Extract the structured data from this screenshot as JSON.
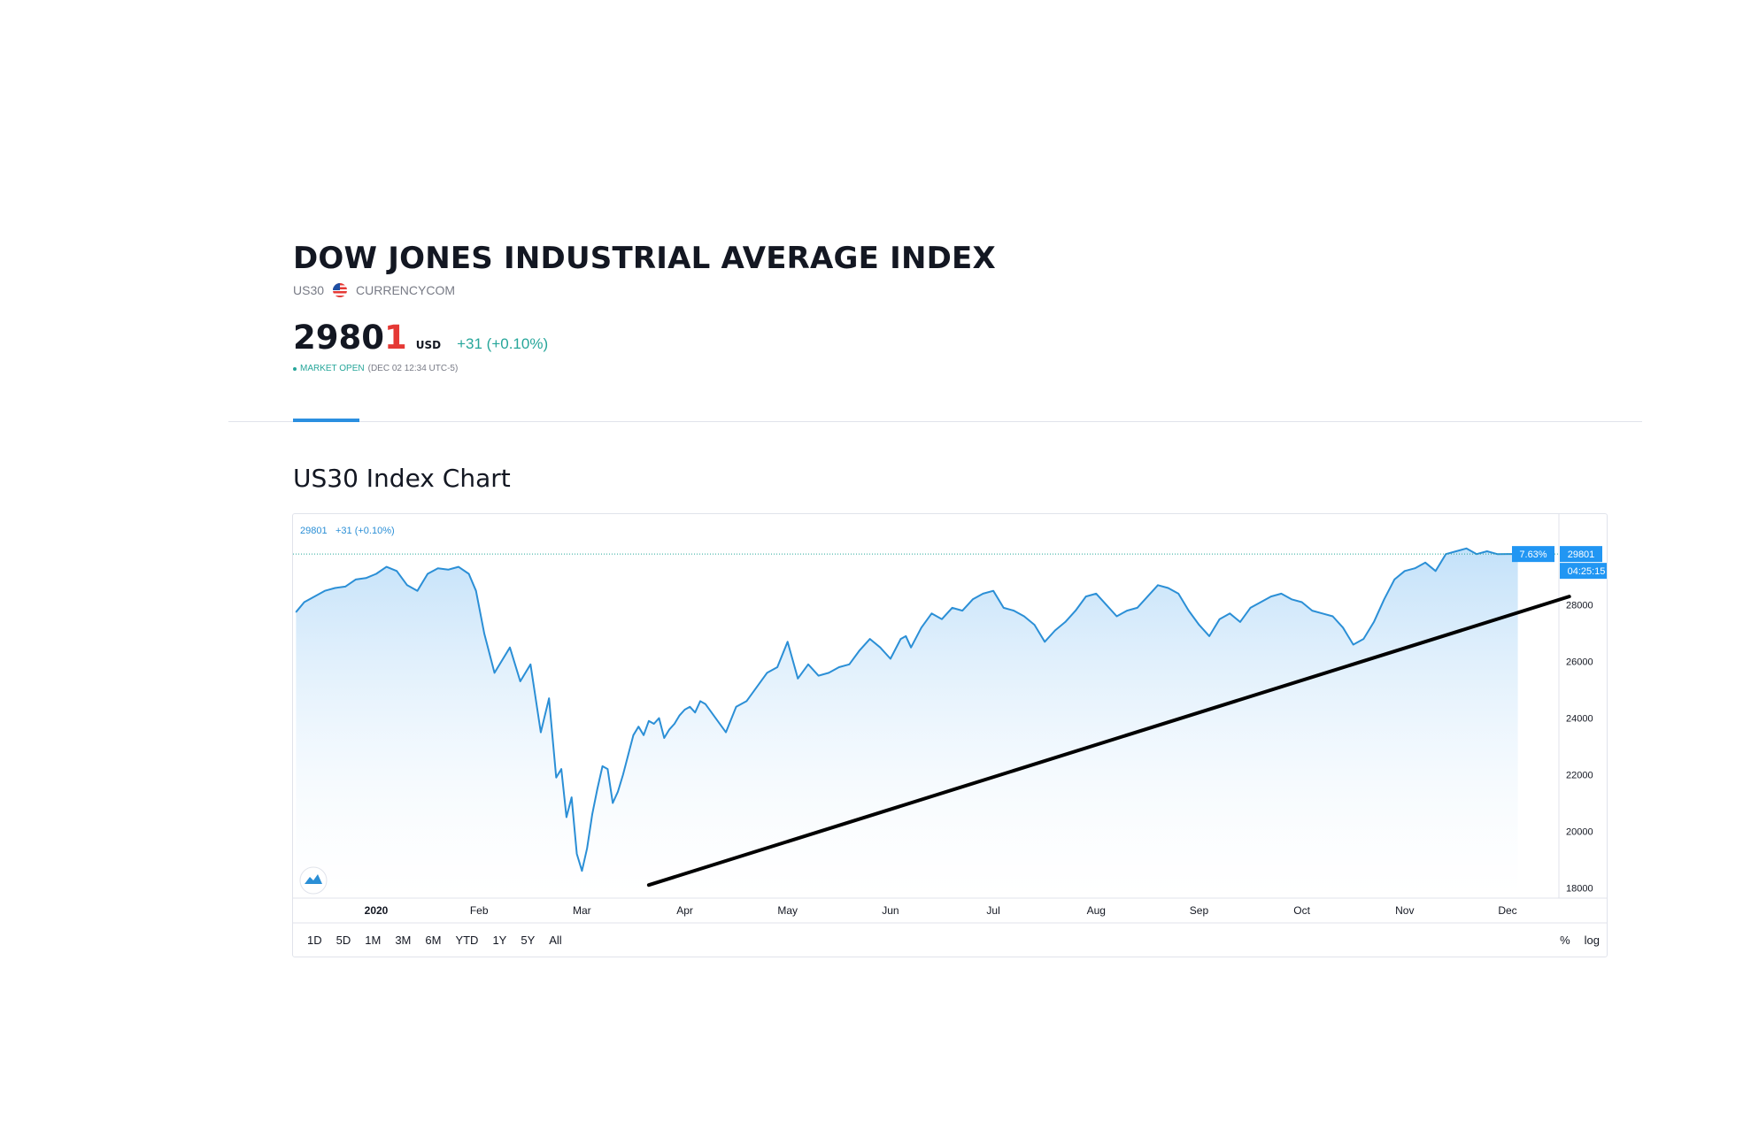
{
  "header": {
    "title": "DOW JONES INDUSTRIAL AVERAGE INDEX",
    "symbol": "US30",
    "exchange": "CURRENCYCOM",
    "price_main": "2980",
    "price_last_digit": "1",
    "currency": "USD",
    "change": "+31 (+0.10%)",
    "market_status": "MARKET OPEN",
    "market_time": "(DEC 02 12:34 UTC-5)"
  },
  "section": {
    "title": "US30 Index Chart"
  },
  "chart_overlay": {
    "legend_price": "29801",
    "legend_change": "+31 (+0.10%)",
    "percent_badge": "7.63%",
    "price_badge": "29801",
    "countdown_badge": "04:25:15"
  },
  "range_buttons": [
    "1D",
    "5D",
    "1M",
    "3M",
    "6M",
    "YTD",
    "1Y",
    "5Y",
    "All"
  ],
  "scale_buttons": [
    "%",
    "log"
  ],
  "colors": {
    "line": "#2b8fd6",
    "fill": "#d4e9fb",
    "badge": "#2196f3",
    "trendline": "#000000",
    "price_up": "#26a69a",
    "price_last": "#e53935"
  },
  "chart_data": {
    "type": "area",
    "title": "",
    "xlabel": "",
    "ylabel": "",
    "ylim": [
      17700,
      30900
    ],
    "y_ticks": [
      18000,
      20000,
      22000,
      24000,
      26000,
      28000
    ],
    "x_tick_labels": [
      "2020",
      "Feb",
      "Mar",
      "Apr",
      "May",
      "Jun",
      "Jul",
      "Aug",
      "Sep",
      "Oct",
      "Nov",
      "Dec"
    ],
    "x_tick_month_index": [
      0,
      1,
      2,
      3,
      4,
      5,
      6,
      7,
      8,
      9,
      10,
      11
    ],
    "x_range_months": [
      -0.82,
      12.67
    ],
    "series": [
      {
        "x": [
          -0.78,
          -0.7,
          -0.6,
          -0.5,
          -0.4,
          -0.3,
          -0.2,
          -0.1,
          0.0,
          0.1,
          0.2,
          0.3,
          0.4,
          0.5,
          0.6,
          0.7,
          0.8,
          0.9,
          0.97,
          1.05,
          1.15,
          1.3,
          1.4,
          1.5,
          1.6,
          1.68,
          1.75,
          1.8,
          1.85,
          1.9,
          1.95,
          2.0,
          2.05,
          2.1,
          2.15,
          2.2,
          2.25,
          2.3,
          2.35,
          2.4,
          2.45,
          2.5,
          2.55,
          2.6,
          2.65,
          2.7,
          2.75,
          2.8,
          2.85,
          2.9,
          2.95,
          3.0,
          3.05,
          3.1,
          3.15,
          3.2,
          3.3,
          3.4,
          3.5,
          3.6,
          3.7,
          3.8,
          3.9,
          4.0,
          4.1,
          4.2,
          4.3,
          4.4,
          4.5,
          4.6,
          4.7,
          4.8,
          4.9,
          5.0,
          5.1,
          5.15,
          5.2,
          5.3,
          5.4,
          5.5,
          5.6,
          5.7,
          5.8,
          5.9,
          6.0,
          6.1,
          6.2,
          6.3,
          6.4,
          6.5,
          6.6,
          6.7,
          6.8,
          6.9,
          7.0,
          7.1,
          7.2,
          7.3,
          7.4,
          7.5,
          7.6,
          7.7,
          7.8,
          7.9,
          8.0,
          8.1,
          8.2,
          8.3,
          8.4,
          8.5,
          8.6,
          8.7,
          8.8,
          8.9,
          9.0,
          9.1,
          9.2,
          9.3,
          9.4,
          9.5,
          9.6,
          9.7,
          9.8,
          9.9,
          10.0,
          10.1,
          10.2,
          10.3,
          10.4,
          10.5,
          10.6,
          10.7,
          10.8,
          10.9,
          11.0,
          11.1
        ],
        "values": [
          27750,
          28100,
          28300,
          28500,
          28600,
          28650,
          28900,
          28950,
          29100,
          29350,
          29200,
          28700,
          28500,
          29100,
          29300,
          29250,
          29350,
          29100,
          28500,
          27000,
          25600,
          26500,
          25300,
          25900,
          23500,
          24700,
          21900,
          22200,
          20500,
          21200,
          19200,
          18600,
          19400,
          20600,
          21500,
          22300,
          22200,
          21000,
          21400,
          22000,
          22700,
          23400,
          23700,
          23400,
          23900,
          23800,
          24000,
          23300,
          23600,
          23800,
          24100,
          24300,
          24400,
          24200,
          24600,
          24500,
          24000,
          23500,
          24400,
          24600,
          25100,
          25600,
          25800,
          26700,
          25400,
          25900,
          25500,
          25600,
          25800,
          25900,
          26400,
          26800,
          26500,
          26100,
          26800,
          26900,
          26500,
          27200,
          27700,
          27500,
          27900,
          27800,
          28200,
          28400,
          28500,
          27900,
          27800,
          27600,
          27300,
          26700,
          27100,
          27400,
          27800,
          28300,
          28400,
          28000,
          27600,
          27800,
          27900,
          28300,
          28700,
          28600,
          28400,
          27800,
          27300,
          26900,
          27500,
          27700,
          27400,
          27900,
          28100,
          28300,
          28400,
          28200,
          28100,
          27800,
          27700,
          27600,
          27200,
          26600,
          26800,
          27400,
          28200,
          28900,
          29200,
          29300,
          29500,
          29200,
          29800,
          29900,
          30000,
          29800,
          29900,
          29800,
          29801,
          29801
        ],
        "name": ""
      }
    ],
    "trendline": {
      "start": {
        "month": 2.65,
        "value": 18100
      },
      "end": {
        "month": 11.6,
        "value": 28300
      }
    },
    "grid": false,
    "legend": "none"
  }
}
